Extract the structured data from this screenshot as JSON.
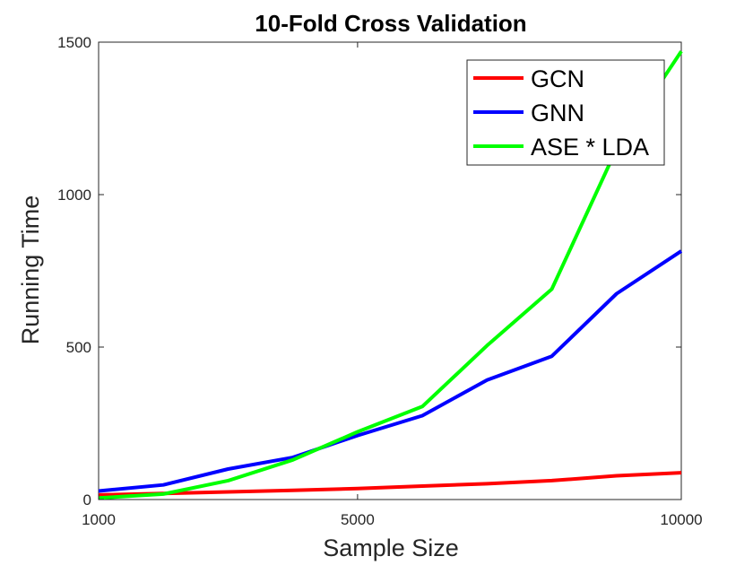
{
  "chart_data": {
    "type": "line",
    "title": "10-Fold Cross Validation",
    "xlabel": "Sample Size",
    "ylabel": "Running Time",
    "xlim": [
      1000,
      10000
    ],
    "ylim": [
      0,
      1500
    ],
    "xticks": [
      1000,
      5000,
      10000
    ],
    "yticks": [
      0,
      500,
      1000,
      1500
    ],
    "grid": false,
    "legend_position": "top-right",
    "series": [
      {
        "name": "GCN",
        "color": "#ff0000",
        "x": [
          1000,
          2000,
          3000,
          4000,
          5000,
          6000,
          7000,
          8000,
          9000,
          10000
        ],
        "y": [
          15,
          20,
          25,
          30,
          36,
          44,
          52,
          62,
          78,
          88
        ]
      },
      {
        "name": "GNN",
        "color": "#0000ff",
        "x": [
          1000,
          2000,
          3000,
          4000,
          5000,
          6000,
          7000,
          8000,
          9000,
          10000
        ],
        "y": [
          28,
          48,
          100,
          138,
          210,
          275,
          392,
          470,
          675,
          815
        ]
      },
      {
        "name": "ASE * LDA",
        "color": "#00ff00",
        "x": [
          1000,
          2000,
          3000,
          4000,
          5000,
          6000,
          7000,
          8000,
          9000,
          10000
        ],
        "y": [
          5,
          18,
          62,
          130,
          222,
          305,
          505,
          690,
          1150,
          1470
        ]
      }
    ]
  }
}
